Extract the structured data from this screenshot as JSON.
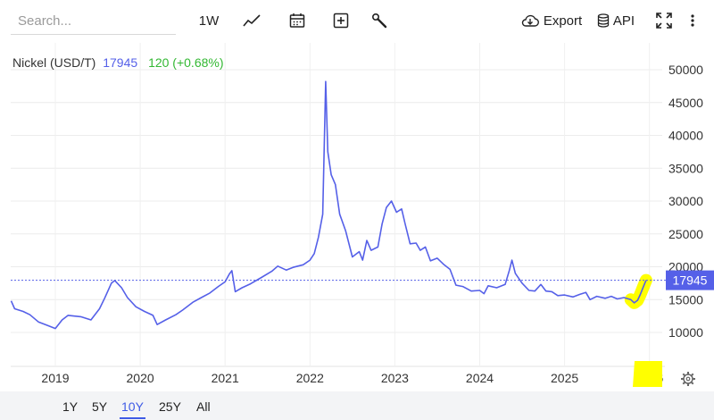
{
  "toolbar": {
    "search_placeholder": "Search...",
    "interval_label": "1W",
    "export_label": "Export",
    "api_label": "API"
  },
  "legend": {
    "symbol": "Nickel (USD/T)",
    "price": "17945",
    "change": "120 (+0.68%)"
  },
  "price_tag": "17945",
  "range_buttons": [
    "1Y",
    "5Y",
    "10Y",
    "25Y",
    "All"
  ],
  "active_range": "10Y",
  "colors": {
    "line": "#5560e8",
    "change_positive": "#33b833",
    "highlight": "#ffff00",
    "price_tag_bg": "#5560e8"
  },
  "chart_data": {
    "type": "line",
    "yaxis_position": "right",
    "ylim": [
      5000,
      50000
    ],
    "y_ticks": [
      10000,
      15000,
      20000,
      25000,
      30000,
      35000,
      40000,
      45000,
      50000
    ],
    "x_tick_labels": [
      "2019",
      "2020",
      "2021",
      "2022",
      "2023",
      "2024",
      "2025",
      "2026"
    ],
    "series": [
      {
        "values": [
          [
            2018.48,
            14800
          ],
          [
            2018.52,
            13600
          ],
          [
            2018.62,
            13200
          ],
          [
            2018.7,
            12700
          ],
          [
            2018.8,
            11600
          ],
          [
            2018.92,
            11000
          ],
          [
            2019.0,
            10600
          ],
          [
            2019.08,
            11900
          ],
          [
            2019.15,
            12600
          ],
          [
            2019.3,
            12400
          ],
          [
            2019.42,
            11900
          ],
          [
            2019.52,
            13600
          ],
          [
            2019.58,
            15200
          ],
          [
            2019.66,
            17500
          ],
          [
            2019.7,
            17900
          ],
          [
            2019.78,
            16800
          ],
          [
            2019.85,
            15300
          ],
          [
            2019.95,
            13900
          ],
          [
            2020.05,
            13200
          ],
          [
            2020.15,
            12600
          ],
          [
            2020.2,
            11200
          ],
          [
            2020.3,
            11900
          ],
          [
            2020.42,
            12700
          ],
          [
            2020.5,
            13400
          ],
          [
            2020.62,
            14600
          ],
          [
            2020.72,
            15300
          ],
          [
            2020.82,
            16000
          ],
          [
            2020.92,
            17000
          ],
          [
            2021.0,
            17700
          ],
          [
            2021.05,
            18900
          ],
          [
            2021.08,
            19400
          ],
          [
            2021.12,
            16200
          ],
          [
            2021.2,
            16800
          ],
          [
            2021.3,
            17400
          ],
          [
            2021.42,
            18300
          ],
          [
            2021.55,
            19300
          ],
          [
            2021.62,
            20100
          ],
          [
            2021.72,
            19500
          ],
          [
            2021.8,
            19900
          ],
          [
            2021.92,
            20300
          ],
          [
            2022.0,
            21000
          ],
          [
            2022.05,
            22000
          ],
          [
            2022.1,
            24500
          ],
          [
            2022.15,
            28000
          ],
          [
            2022.185,
            48200
          ],
          [
            2022.21,
            37500
          ],
          [
            2022.25,
            34000
          ],
          [
            2022.3,
            32500
          ],
          [
            2022.35,
            28000
          ],
          [
            2022.42,
            25500
          ],
          [
            2022.5,
            21500
          ],
          [
            2022.58,
            22300
          ],
          [
            2022.62,
            21000
          ],
          [
            2022.67,
            24000
          ],
          [
            2022.72,
            22500
          ],
          [
            2022.8,
            23000
          ],
          [
            2022.85,
            26500
          ],
          [
            2022.9,
            29000
          ],
          [
            2022.96,
            30000
          ],
          [
            2023.02,
            28300
          ],
          [
            2023.08,
            28800
          ],
          [
            2023.12,
            26600
          ],
          [
            2023.18,
            23500
          ],
          [
            2023.25,
            23600
          ],
          [
            2023.3,
            22500
          ],
          [
            2023.36,
            23000
          ],
          [
            2023.42,
            20900
          ],
          [
            2023.5,
            21300
          ],
          [
            2023.58,
            20300
          ],
          [
            2023.65,
            19600
          ],
          [
            2023.72,
            17200
          ],
          [
            2023.8,
            17000
          ],
          [
            2023.9,
            16300
          ],
          [
            2024.0,
            16400
          ],
          [
            2024.05,
            15900
          ],
          [
            2024.1,
            17100
          ],
          [
            2024.2,
            16800
          ],
          [
            2024.3,
            17300
          ],
          [
            2024.35,
            19500
          ],
          [
            2024.38,
            21000
          ],
          [
            2024.42,
            19000
          ],
          [
            2024.5,
            17500
          ],
          [
            2024.58,
            16400
          ],
          [
            2024.65,
            16300
          ],
          [
            2024.72,
            17300
          ],
          [
            2024.78,
            16300
          ],
          [
            2024.85,
            16200
          ],
          [
            2024.92,
            15600
          ],
          [
            2025.0,
            15700
          ],
          [
            2025.1,
            15400
          ],
          [
            2025.18,
            15800
          ],
          [
            2025.25,
            16100
          ],
          [
            2025.3,
            15000
          ],
          [
            2025.38,
            15500
          ],
          [
            2025.48,
            15200
          ],
          [
            2025.55,
            15500
          ],
          [
            2025.62,
            15100
          ],
          [
            2025.7,
            15300
          ],
          [
            2025.78,
            15000
          ],
          [
            2025.82,
            14500
          ],
          [
            2025.86,
            14900
          ],
          [
            2025.89,
            15700
          ],
          [
            2025.93,
            17000
          ],
          [
            2025.96,
            17945
          ]
        ]
      }
    ],
    "last_value": 17945,
    "last_value_line": "dotted"
  }
}
